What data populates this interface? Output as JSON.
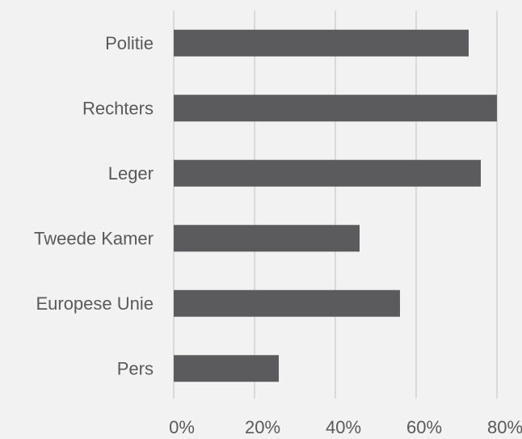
{
  "chart_data": {
    "type": "bar",
    "orientation": "horizontal",
    "categories": [
      "Politie",
      "Rechters",
      "Leger",
      "Tweede Kamer",
      "Europese Unie",
      "Pers"
    ],
    "values": [
      73,
      80,
      76,
      46,
      56,
      26
    ],
    "unit": "%",
    "xlim": [
      0,
      80
    ],
    "xticks": [
      0,
      20,
      40,
      60,
      80
    ],
    "xtick_labels": [
      "0%",
      "20%",
      "40%",
      "60%",
      "80%"
    ],
    "grid": "vertical",
    "legend": "none",
    "title": "",
    "xlabel": "",
    "ylabel": ""
  },
  "colors": {
    "background": "#f2f2f2",
    "bar": "#5b5b5e",
    "grid": "#d9d9d9",
    "text": "#595959"
  }
}
